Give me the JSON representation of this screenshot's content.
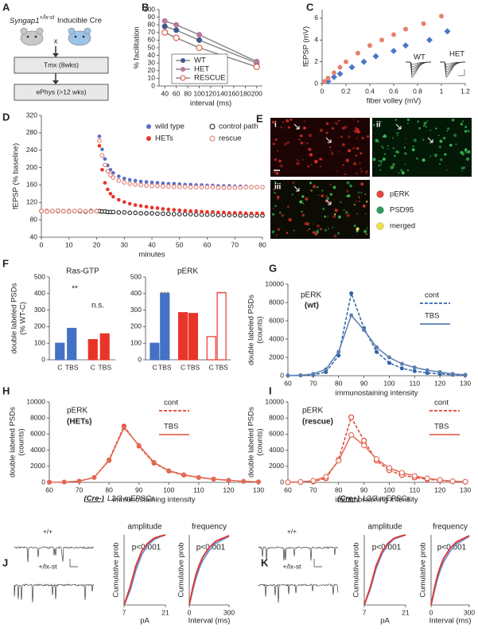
{
  "panel_letters": [
    "A",
    "B",
    "C",
    "D",
    "E",
    "F",
    "G",
    "H",
    "I",
    "J",
    "K"
  ],
  "panel_a": {
    "genotype": "Syngap1",
    "genotype_sup": "+/lx-st",
    "cross_partner": "Inducible Cre",
    "cross": "x",
    "step1": "Tmx (8wks)",
    "step2": "ePhys (>12 wks)"
  },
  "panel_e": {
    "labels": [
      "i",
      "ii",
      "iii"
    ],
    "legend": [
      "pERK",
      "PSD95",
      "merged"
    ]
  },
  "panel_j": {
    "genotype": "(Cre-)",
    "title": "L2/3 mEPSCs",
    "traces": [
      "+/+",
      "+/lx-st"
    ]
  },
  "panel_k": {
    "genotype": "(Cre+)",
    "title": "L2/3 mEPSCs",
    "traces": [
      "+/+",
      "+/lx-st"
    ]
  },
  "chart_data": [
    {
      "type": "line",
      "xlabel": "interval (ms)",
      "ylabel": "% facilitation",
      "line_color": "#8a8a8a",
      "x": [
        40,
        60,
        100,
        200
      ],
      "xlim": [
        30,
        210
      ],
      "xticks": [
        40,
        60,
        80,
        100,
        120,
        140,
        160,
        180,
        200
      ],
      "ylim": [
        0,
        100
      ],
      "yticks": [
        0,
        10,
        20,
        30,
        40,
        50,
        60,
        70,
        80,
        90,
        100
      ],
      "series": [
        {
          "name": "WT",
          "color": "#3f5b8c",
          "marker": "circle",
          "values": [
            78,
            73,
            60,
            30
          ]
        },
        {
          "name": "HET",
          "color": "#b9789e",
          "marker": "circle",
          "values": [
            85,
            80,
            67,
            32
          ]
        },
        {
          "name": "RESCUE",
          "color": "#e0513f",
          "marker": "open",
          "values": [
            70,
            63,
            50,
            25
          ]
        }
      ]
    },
    {
      "type": "scatter",
      "xlabel": "fiber volley (mV)",
      "ylabel": "fEPSP (mV)",
      "xlim": [
        0,
        1.2
      ],
      "xticks": [
        0,
        0.2,
        0.4,
        0.6,
        0.8,
        1,
        1.2
      ],
      "ylim": [
        0,
        6.8
      ],
      "yticks": [
        0,
        2,
        4,
        6
      ],
      "series": [
        {
          "name": "WT",
          "color": "#4a78c8",
          "marker": "diamond",
          "x": [
            0.05,
            0.1,
            0.15,
            0.25,
            0.35,
            0.45,
            0.6,
            0.7,
            0.9,
            1.05
          ],
          "values": [
            0.2,
            0.6,
            0.9,
            1.5,
            2.0,
            2.5,
            3.0,
            3.5,
            4.0,
            4.8
          ]
        },
        {
          "name": "HET",
          "color": "#e88070",
          "marker": "circle",
          "x": [
            0.02,
            0.05,
            0.1,
            0.15,
            0.2,
            0.3,
            0.4,
            0.5,
            0.6,
            0.7,
            0.85,
            1.0
          ],
          "values": [
            0.2,
            0.5,
            1.0,
            1.5,
            2.0,
            2.8,
            3.5,
            4.0,
            4.5,
            5.0,
            5.5,
            6.2
          ]
        }
      ]
    },
    {
      "type": "scatter",
      "xlabel": "minutes",
      "ylabel": "fEPSP (% baseline)",
      "x": [
        0,
        2,
        4,
        6,
        8,
        10,
        12,
        14,
        16,
        18,
        20,
        21,
        22,
        23,
        24,
        25,
        26,
        28,
        30,
        32,
        34,
        36,
        38,
        40,
        42,
        44,
        46,
        48,
        50,
        52,
        54,
        56,
        58,
        60,
        62,
        64,
        66,
        68,
        70,
        72,
        74,
        76,
        78,
        80
      ],
      "xlim": [
        0,
        80
      ],
      "xticks": [
        0,
        10,
        20,
        30,
        40,
        50,
        60,
        70,
        80
      ],
      "ylim": [
        40,
        320
      ],
      "yticks": [
        40,
        80,
        120,
        160,
        200,
        240,
        280,
        320
      ],
      "series": [
        {
          "name": "wild type",
          "color": "#5b6fc7",
          "marker": "circle",
          "values": [
            100,
            101,
            99,
            100,
            100,
            101,
            99,
            100,
            100,
            101,
            100,
            272,
            242,
            220,
            205,
            195,
            188,
            180,
            175,
            172,
            170,
            168,
            167,
            166,
            165,
            164,
            163,
            163,
            162,
            161,
            161,
            160,
            160,
            159,
            159,
            158,
            158,
            158,
            157,
            157,
            157,
            156,
            156,
            156
          ]
        },
        {
          "name": "control path",
          "color": "#222222",
          "marker": "open",
          "values": [
            100,
            99,
            100,
            101,
            100,
            99,
            100,
            100,
            99,
            100,
            100,
            100,
            99,
            99,
            98,
            98,
            98,
            97,
            97,
            96,
            96,
            95,
            95,
            95,
            94,
            94,
            94,
            93,
            93,
            93,
            93,
            92,
            92,
            92,
            92,
            91,
            91,
            91,
            91,
            90,
            90,
            90,
            90,
            90
          ]
        },
        {
          "name": "HETs",
          "color": "#e8352a",
          "marker": "circle",
          "values": [
            100,
            101,
            100,
            99,
            100,
            101,
            100,
            99,
            100,
            100,
            101,
            250,
            195,
            165,
            150,
            140,
            133,
            126,
            121,
            117,
            114,
            112,
            110,
            108,
            107,
            105,
            104,
            103,
            102,
            101,
            100,
            100,
            99,
            98,
            98,
            97,
            97,
            96,
            96,
            96,
            95,
            95,
            95,
            95
          ]
        },
        {
          "name": "rescue",
          "color": "#e07a70",
          "marker": "open",
          "values": [
            100,
            99,
            100,
            101,
            100,
            99,
            100,
            101,
            100,
            99,
            100,
            262,
            228,
            206,
            192,
            183,
            177,
            170,
            166,
            163,
            161,
            160,
            159,
            158,
            158,
            157,
            157,
            156,
            156,
            156,
            155,
            155,
            155,
            155,
            155,
            154,
            154,
            154,
            154,
            154,
            155,
            155,
            155,
            155
          ]
        }
      ]
    },
    {
      "type": "bar",
      "title": "Ras-GTP",
      "ylabel": [
        "double labeled PSDs",
        "(% WT-C)"
      ],
      "categories": [
        "C",
        "TBS",
        "C",
        "TBS"
      ],
      "values": [
        100,
        190,
        122,
        157
      ],
      "colors": [
        "#4472c4",
        "#4472c4",
        "#e8352a",
        "#e8352a"
      ],
      "fills": [
        "#4472c4",
        "#4472c4",
        "#e8352a",
        "#e8352a"
      ],
      "ylim": [
        0,
        500
      ],
      "yticks": [
        0,
        100,
        200,
        300,
        400,
        500
      ],
      "annotations": [
        "**",
        "n.s."
      ]
    },
    {
      "type": "bar",
      "title": "pERK",
      "categories": [
        "C",
        "TBS",
        "C",
        "TBS",
        "C",
        "TBS"
      ],
      "values": [
        100,
        400,
        285,
        280,
        140,
        405
      ],
      "colors": [
        "#4472c4",
        "#4472c4",
        "#e8352a",
        "#e8352a",
        "#e8352a",
        "#e8352a"
      ],
      "fills": [
        "#4472c4",
        "#4472c4",
        "#e8352a",
        "#e8352a",
        "#ffffff",
        "#ffffff"
      ],
      "ylim": [
        0,
        500
      ],
      "yticks": [
        0,
        100,
        200,
        300,
        400,
        500
      ],
      "annotations": [
        "***",
        "***"
      ]
    },
    {
      "type": "line",
      "title": "pERK",
      "subtitle": "(wt)",
      "xlabel": "immunostaining intensity",
      "ylabel": [
        "double labeled PSDs",
        "(counts)"
      ],
      "x": [
        60,
        65,
        70,
        75,
        80,
        85,
        90,
        95,
        100,
        105,
        110,
        115,
        120,
        125,
        130
      ],
      "xlim": [
        60,
        130
      ],
      "xticks": [
        60,
        70,
        80,
        90,
        100,
        110,
        120,
        130
      ],
      "ylim": [
        0,
        10000
      ],
      "yticks": [
        0,
        2000,
        4000,
        6000,
        8000,
        10000
      ],
      "series": [
        {
          "name": "cont",
          "color": "#2f64a8",
          "dash": true,
          "marker": "circle",
          "values": [
            20,
            30,
            80,
            400,
            2200,
            9000,
            5200,
            2600,
            1400,
            800,
            500,
            300,
            200,
            100,
            50
          ]
        },
        {
          "name": "TBS",
          "color": "#5a7fb0",
          "marker": "circle",
          "values": [
            20,
            50,
            200,
            700,
            2600,
            6600,
            5000,
            3100,
            2000,
            1300,
            900,
            600,
            400,
            200,
            100
          ]
        }
      ]
    },
    {
      "type": "line",
      "title": "pERK",
      "subtitle": "(HETs)",
      "xlabel": "immunostaining intensity",
      "ylabel": [
        "double labeled PSDs",
        "(counts)"
      ],
      "x": [
        60,
        65,
        70,
        75,
        80,
        85,
        90,
        95,
        100,
        105,
        110,
        115,
        120,
        125,
        130
      ],
      "xlim": [
        60,
        130
      ],
      "xticks": [
        60,
        70,
        80,
        90,
        100,
        110,
        120,
        130
      ],
      "ylim": [
        0,
        10000
      ],
      "yticks": [
        0,
        2000,
        4000,
        6000,
        8000,
        10000
      ],
      "series": [
        {
          "name": "cont",
          "color": "#e0442e",
          "dash": true,
          "marker": "circle",
          "values": [
            20,
            40,
            150,
            600,
            2800,
            7000,
            4500,
            2400,
            1400,
            900,
            600,
            400,
            250,
            120,
            60
          ]
        },
        {
          "name": "TBS",
          "color": "#e26a55",
          "marker": "circle",
          "values": [
            20,
            40,
            160,
            620,
            2700,
            6800,
            4600,
            2500,
            1450,
            950,
            620,
            420,
            260,
            130,
            60
          ]
        }
      ]
    },
    {
      "type": "line",
      "title": "pERK",
      "subtitle": "(rescue)",
      "xlabel": "immunostaining intensity",
      "ylabel": [
        "double labeled PSDs",
        "(counts)"
      ],
      "x": [
        60,
        65,
        70,
        75,
        80,
        85,
        90,
        95,
        100,
        105,
        110,
        115,
        120,
        125,
        130
      ],
      "xlim": [
        60,
        130
      ],
      "xticks": [
        60,
        70,
        80,
        90,
        100,
        110,
        120,
        130
      ],
      "ylim": [
        0,
        10000
      ],
      "yticks": [
        0,
        2000,
        4000,
        6000,
        8000,
        10000
      ],
      "series": [
        {
          "name": "cont",
          "color": "#e0442e",
          "dash": true,
          "marker": "open",
          "values": [
            20,
            40,
            120,
            500,
            2800,
            8100,
            5200,
            2700,
            1500,
            900,
            600,
            400,
            250,
            120,
            60
          ]
        },
        {
          "name": "TBS",
          "color": "#e26a55",
          "marker": "open",
          "values": [
            20,
            60,
            200,
            700,
            2700,
            5900,
            4600,
            2900,
            1800,
            1200,
            800,
            500,
            300,
            150,
            80
          ]
        }
      ]
    },
    {
      "type": "line",
      "title": "amplitude",
      "xlabel": "pA",
      "ylabel": "Cumulative prob",
      "annotations": [
        "p<0.001"
      ],
      "x": [
        7,
        9,
        11,
        13,
        15,
        17,
        19,
        21
      ],
      "xlim": [
        7,
        21
      ],
      "xticks": [
        7,
        21
      ],
      "ylim": [
        0,
        1
      ],
      "series": [
        {
          "color": "#6d8fd6",
          "values": [
            0,
            0.2,
            0.5,
            0.72,
            0.85,
            0.93,
            0.97,
            1
          ]
        },
        {
          "color": "#e0352a",
          "values": [
            0,
            0.25,
            0.56,
            0.77,
            0.88,
            0.95,
            0.98,
            1
          ]
        }
      ]
    },
    {
      "type": "line",
      "title": "frequency",
      "xlabel": "Interval (ms)",
      "ylabel": "Cumulative prob",
      "annotations": [
        "p<0.001"
      ],
      "x": [
        0,
        25,
        50,
        75,
        100,
        150,
        200,
        300
      ],
      "xlim": [
        0,
        300
      ],
      "xticks": [
        0,
        300
      ],
      "ylim": [
        0,
        1
      ],
      "series": [
        {
          "color": "#6d8fd6",
          "values": [
            0,
            0.2,
            0.38,
            0.52,
            0.63,
            0.78,
            0.88,
            0.98
          ]
        },
        {
          "color": "#e0352a",
          "values": [
            0,
            0.24,
            0.43,
            0.57,
            0.68,
            0.82,
            0.91,
            0.99
          ]
        }
      ]
    },
    {
      "type": "line",
      "title": "amplitude",
      "xlabel": "pA",
      "ylabel": "Cumulative prob",
      "annotations": [
        "p<0.001"
      ],
      "x": [
        7,
        9,
        11,
        13,
        15,
        17,
        19,
        21
      ],
      "xlim": [
        7,
        21
      ],
      "xticks": [
        7,
        21
      ],
      "ylim": [
        0,
        1
      ],
      "series": [
        {
          "color": "#6d8fd6",
          "values": [
            0,
            0.22,
            0.52,
            0.73,
            0.86,
            0.94,
            0.97,
            1
          ]
        },
        {
          "color": "#e0352a",
          "values": [
            0,
            0.25,
            0.56,
            0.76,
            0.88,
            0.95,
            0.98,
            1
          ]
        }
      ]
    },
    {
      "type": "line",
      "title": "frequency",
      "xlabel": "Interval (ms)",
      "ylabel": "Cumulative prob",
      "annotations": [
        "p<0.001"
      ],
      "x": [
        0,
        25,
        50,
        75,
        100,
        150,
        200,
        300
      ],
      "xlim": [
        0,
        300
      ],
      "xticks": [
        0,
        300
      ],
      "ylim": [
        0,
        1
      ],
      "series": [
        {
          "color": "#6d8fd6",
          "values": [
            0,
            0.19,
            0.37,
            0.51,
            0.62,
            0.77,
            0.87,
            0.98
          ]
        },
        {
          "color": "#e0352a",
          "values": [
            0,
            0.23,
            0.42,
            0.56,
            0.67,
            0.81,
            0.9,
            0.99
          ]
        }
      ]
    }
  ]
}
